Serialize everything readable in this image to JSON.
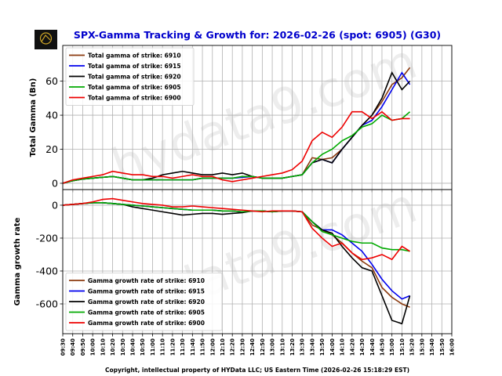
{
  "chart_data": [
    {
      "type": "line",
      "title": "SPX-Gamma Tracking & Growth for: 2026-02-26 (spot: 6905) (G30)",
      "ylabel": "Total Gamma (Bn)",
      "watermark": "hydata9.com",
      "x": [
        "09:30",
        "09:40",
        "09:50",
        "10:00",
        "10:10",
        "10:20",
        "10:30",
        "10:40",
        "10:50",
        "11:00",
        "11:10",
        "11:20",
        "11:30",
        "11:40",
        "11:50",
        "12:00",
        "12:10",
        "12:20",
        "12:30",
        "12:40",
        "12:50",
        "13:00",
        "13:10",
        "13:20",
        "13:30",
        "13:40",
        "13:50",
        "14:00",
        "14:10",
        "14:20",
        "14:30",
        "14:40",
        "14:50",
        "15:00",
        "15:10",
        "15:18"
      ],
      "xlim": [
        "09:30",
        "16:00"
      ],
      "xticks": [
        "09:30",
        "09:40",
        "09:50",
        "10:00",
        "10:10",
        "10:20",
        "10:30",
        "10:40",
        "10:50",
        "11:00",
        "11:10",
        "11:20",
        "11:30",
        "11:40",
        "11:50",
        "12:00",
        "12:10",
        "12:20",
        "12:30",
        "12:40",
        "12:50",
        "13:00",
        "13:10",
        "13:20",
        "13:30",
        "13:40",
        "13:50",
        "14:00",
        "14:10",
        "14:20",
        "14:30",
        "14:40",
        "14:50",
        "15:00",
        "15:10",
        "15:20",
        "15:30",
        "15:40",
        "15:50",
        "16:00"
      ],
      "ylim": [
        -3.7,
        81
      ],
      "yticks": [
        0,
        20,
        40,
        60
      ],
      "grid": true,
      "legend": "upper left",
      "series": [
        {
          "name": "Total gamma of strike: 6910",
          "color": "#8b3a0f",
          "values": [
            0,
            1.5,
            2.5,
            3,
            3.5,
            4,
            3,
            2,
            2,
            2,
            2,
            2,
            2,
            2,
            3,
            3,
            3,
            3,
            3.5,
            4,
            3,
            3,
            3,
            4,
            5,
            15,
            14,
            15,
            20,
            27,
            34,
            40,
            48,
            58,
            62,
            68
          ]
        },
        {
          "name": "Total gamma of strike: 6915",
          "color": "#0000ee",
          "values": [
            0,
            1.5,
            2.5,
            3,
            3.5,
            4,
            3,
            2,
            2,
            2,
            2,
            2,
            2,
            2,
            3,
            3,
            3,
            3,
            3.5,
            4,
            3,
            3,
            3,
            4,
            5,
            12,
            14,
            12,
            20,
            27,
            34,
            37,
            45,
            55,
            65,
            58
          ]
        },
        {
          "name": "Total gamma of strike: 6920",
          "color": "#000000",
          "values": [
            0,
            1.5,
            2.5,
            3,
            3.5,
            4,
            3,
            2,
            2,
            3,
            5,
            6,
            7,
            6,
            5,
            5,
            6,
            5,
            6,
            4,
            3,
            3,
            3,
            4,
            5,
            12,
            14,
            12,
            20,
            27,
            34,
            40,
            50,
            65,
            55,
            60
          ]
        },
        {
          "name": "Total gamma of strike: 6905",
          "color": "#00aa00",
          "values": [
            0,
            1.5,
            2.5,
            3,
            3.5,
            4,
            3,
            2,
            2,
            2,
            2,
            2,
            2,
            2,
            3,
            3,
            3,
            3,
            4,
            4,
            3,
            3,
            3,
            4,
            5,
            12,
            17,
            20,
            25,
            28,
            33,
            35,
            40,
            37,
            38,
            42
          ]
        },
        {
          "name": "Total gamma of strike: 6900",
          "color": "#ee0000",
          "values": [
            0,
            2,
            3,
            4,
            5,
            7,
            6,
            5,
            5,
            4,
            4,
            3,
            4,
            5,
            4,
            4,
            2,
            1,
            2,
            3,
            4,
            5,
            6,
            8,
            13,
            25,
            30,
            27,
            33,
            42,
            42,
            38,
            42,
            37,
            38,
            38
          ]
        }
      ]
    },
    {
      "type": "line",
      "ylabel": "Gamma growth rate",
      "xlabel": "Copyright, intellectual property of HYData LLC; US Eastern Time (2026-02-26 15:18:29 EST)",
      "watermark": "hydata9.com",
      "x": [
        "09:30",
        "09:40",
        "09:50",
        "10:00",
        "10:10",
        "10:20",
        "10:30",
        "10:40",
        "10:50",
        "11:00",
        "11:10",
        "11:20",
        "11:30",
        "11:40",
        "11:50",
        "12:00",
        "12:10",
        "12:20",
        "12:30",
        "12:40",
        "12:50",
        "13:00",
        "13:10",
        "13:20",
        "13:30",
        "13:40",
        "13:50",
        "14:00",
        "14:10",
        "14:20",
        "14:30",
        "14:40",
        "14:50",
        "15:00",
        "15:10",
        "15:18"
      ],
      "xlim": [
        "09:30",
        "16:00"
      ],
      "xticks": [
        "09:30",
        "09:40",
        "09:50",
        "10:00",
        "10:10",
        "10:20",
        "10:30",
        "10:40",
        "10:50",
        "11:00",
        "11:10",
        "11:20",
        "11:30",
        "11:40",
        "11:50",
        "12:00",
        "12:10",
        "12:20",
        "12:30",
        "12:40",
        "12:50",
        "13:00",
        "13:10",
        "13:20",
        "13:30",
        "13:40",
        "13:50",
        "14:00",
        "14:10",
        "14:20",
        "14:30",
        "14:40",
        "14:50",
        "15:00",
        "15:10",
        "15:20",
        "15:30",
        "15:40",
        "15:50",
        "16:00"
      ],
      "ylim": [
        -781,
        95
      ],
      "yticks": [
        0,
        -200,
        -400,
        -600
      ],
      "grid": true,
      "legend": "lower left",
      "series": [
        {
          "name": "Gamma growth rate of strike: 6910",
          "color": "#8b3a0f",
          "values": [
            0,
            5,
            10,
            15,
            15,
            10,
            5,
            0,
            -5,
            -10,
            -15,
            -20,
            -25,
            -30,
            -30,
            -30,
            -35,
            -35,
            -40,
            -35,
            -35,
            -40,
            -35,
            -35,
            -40,
            -120,
            -150,
            -180,
            -230,
            -290,
            -340,
            -380,
            -500,
            -560,
            -600,
            -620
          ]
        },
        {
          "name": "Gamma growth rate of strike: 6915",
          "color": "#0000ee",
          "values": [
            0,
            5,
            10,
            15,
            15,
            10,
            5,
            0,
            -5,
            -10,
            -15,
            -20,
            -25,
            -30,
            -30,
            -30,
            -35,
            -35,
            -40,
            -35,
            -35,
            -40,
            -35,
            -35,
            -40,
            -100,
            -150,
            -150,
            -180,
            -230,
            -280,
            -360,
            -450,
            -520,
            -570,
            -550
          ]
        },
        {
          "name": "Gamma growth rate of strike: 6920",
          "color": "#000000",
          "values": [
            0,
            5,
            10,
            15,
            15,
            10,
            5,
            -10,
            -20,
            -30,
            -40,
            -50,
            -60,
            -55,
            -50,
            -50,
            -55,
            -50,
            -45,
            -35,
            -35,
            -40,
            -35,
            -35,
            -40,
            -100,
            -150,
            -170,
            -250,
            -320,
            -380,
            -400,
            -550,
            -700,
            -720,
            -550
          ]
        },
        {
          "name": "Gamma growth rate of strike: 6905",
          "color": "#00aa00",
          "values": [
            0,
            5,
            10,
            15,
            15,
            10,
            5,
            0,
            -5,
            -10,
            -15,
            -20,
            -25,
            -30,
            -30,
            -30,
            -35,
            -35,
            -40,
            -35,
            -35,
            -40,
            -35,
            -35,
            -40,
            -100,
            -160,
            -180,
            -200,
            -220,
            -230,
            -230,
            -260,
            -270,
            -270,
            -280
          ]
        },
        {
          "name": "Gamma growth rate of strike: 6900",
          "color": "#ee0000",
          "values": [
            0,
            5,
            10,
            20,
            35,
            40,
            30,
            20,
            10,
            5,
            0,
            -10,
            -10,
            -5,
            -10,
            -15,
            -20,
            -25,
            -30,
            -35,
            -40,
            -35,
            -35,
            -35,
            -40,
            -140,
            -200,
            -250,
            -230,
            -290,
            -330,
            -320,
            -300,
            -330,
            -250,
            -280
          ]
        }
      ]
    }
  ]
}
